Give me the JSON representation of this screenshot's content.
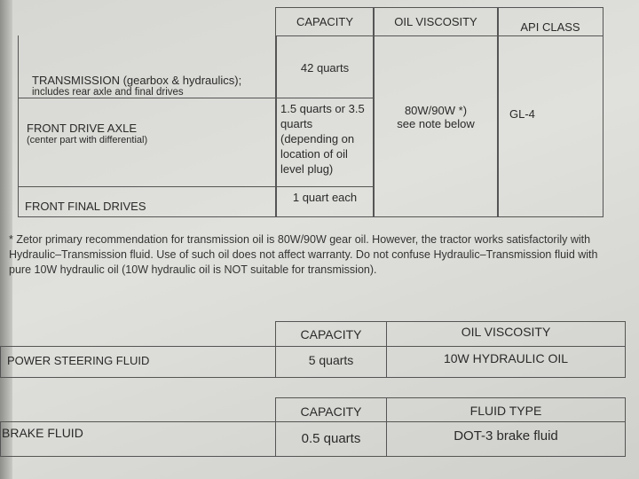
{
  "table1": {
    "headers": [
      "CAPACITY",
      "OIL VISCOSITY",
      "API CLASS"
    ],
    "rows": [
      {
        "name": "TRANSMISSION (gearbox & hydraulics);",
        "sub": "includes rear axle and final drives",
        "capacity": "42 quarts"
      },
      {
        "name": "FRONT DRIVE AXLE",
        "sub": "(center part with differential)",
        "capacity": "1.5 quarts or 3.5 quarts (depending on location of oil level plug)"
      },
      {
        "name": "FRONT FINAL DRIVES",
        "capacity": "1 quart each"
      }
    ],
    "viscosity": "80W/90W *)",
    "viscosity_note": "see note below",
    "api_class": "GL-4"
  },
  "footnote": "* Zetor primary recommendation for transmission oil is 80W/90W gear oil. However, the tractor works satisfactorily with Hydraulic–Transmission fluid. Use of such oil does not affect warranty. Do not confuse Hydraulic–Transmission fluid with pure 10W hydraulic oil (10W hydraulic oil is NOT suitable for transmission).",
  "table2": {
    "headers": [
      "CAPACITY",
      "OIL VISCOSITY"
    ],
    "name": "POWER STEERING FLUID",
    "capacity": "5 quarts",
    "value": "10W HYDRAULIC OIL"
  },
  "table3": {
    "headers": [
      "CAPACITY",
      "FLUID TYPE"
    ],
    "name": "BRAKE FLUID",
    "capacity": "0.5 quarts",
    "value": "DOT-3 brake fluid"
  }
}
